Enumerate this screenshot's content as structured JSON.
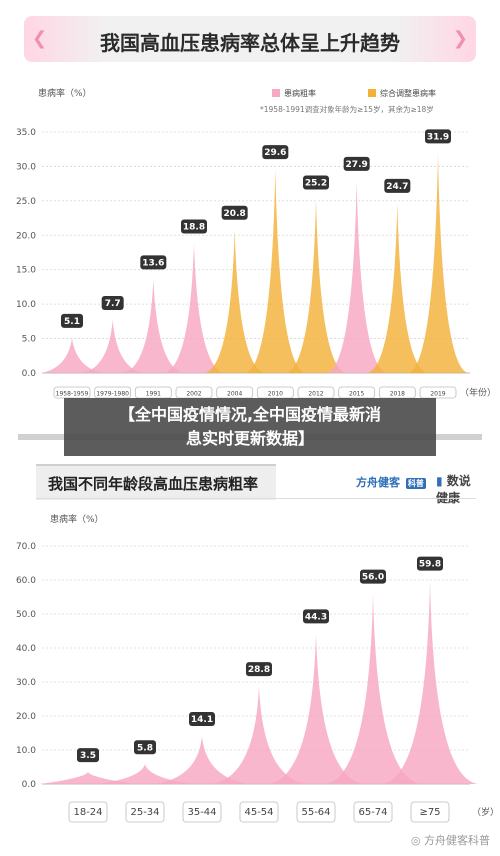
{
  "header": {
    "title": "我国高血压患病率总体呈上升趋势"
  },
  "banner": {
    "line1": "【全中国疫情情况,全中国疫情最新消",
    "line2": "息实时更新数据】"
  },
  "section2": {
    "title": "我国不同年龄段高血压患病粗率"
  },
  "brand": {
    "left": "方舟健客",
    "badge": "科普",
    "right": "数说健康"
  },
  "watermark": "方舟健客科普",
  "colors": {
    "pink": "#f7a7c1",
    "orange": "#f3b13a",
    "label_bg": "#333333",
    "axis_text": "#555555"
  },
  "chart_data": [
    {
      "type": "area",
      "title": "我国高血压患病率总体呈上升趋势",
      "ylabel": "患病率（%）",
      "xlabel": "（年份）",
      "ylim": [
        0,
        35
      ],
      "yticks": [
        "0.0",
        "5.0",
        "10.0",
        "15.0",
        "20.0",
        "25.0",
        "30.0",
        "35.0"
      ],
      "note": "*1958-1991调查对象年龄为≥15岁，其余为≥18岁",
      "legend": [
        "患病粗率",
        "综合调整患病率"
      ],
      "legend_position": "top-right",
      "categories": [
        "1958-1959",
        "1979-1980",
        "1991",
        "2002",
        "2004",
        "2010",
        "2012",
        "2015",
        "2018",
        "2019"
      ],
      "points": [
        {
          "x": "1958-1959",
          "value": 5.1,
          "label": "5.1",
          "series": "患病粗率"
        },
        {
          "x": "1979-1980",
          "value": 7.7,
          "label": "7.7",
          "series": "患病粗率"
        },
        {
          "x": "1991",
          "value": 13.6,
          "label": "13.6",
          "series": "患病粗率"
        },
        {
          "x": "2002",
          "value": 18.8,
          "label": "18.8",
          "series": "患病粗率"
        },
        {
          "x": "2004",
          "value": 20.8,
          "label": "20.8",
          "series": "综合调整患病率"
        },
        {
          "x": "2010",
          "value": 29.6,
          "label": "29.6",
          "series": "综合调整患病率"
        },
        {
          "x": "2012",
          "value": 25.2,
          "label": "25.2",
          "series": "综合调整患病率"
        },
        {
          "x": "2015",
          "value": 27.9,
          "label": "27.9",
          "series": "患病粗率"
        },
        {
          "x": "2018",
          "value": 24.7,
          "label": "24.7",
          "series": "综合调整患病率"
        },
        {
          "x": "2019",
          "value": 31.9,
          "label": "31.9",
          "series": "综合调整患病率"
        }
      ]
    },
    {
      "type": "area",
      "title": "我国不同年龄段高血压患病粗率",
      "ylabel": "患病率（%）",
      "xlabel": "（岁）",
      "ylim": [
        0,
        70
      ],
      "yticks": [
        "0.0",
        "10.0",
        "20.0",
        "30.0",
        "40.0",
        "50.0",
        "60.0",
        "70.0"
      ],
      "categories": [
        "18-24",
        "25-34",
        "35-44",
        "45-54",
        "55-64",
        "65-74",
        "≥75"
      ],
      "points": [
        {
          "x": "18-24",
          "value": 3.5,
          "label": "3.5"
        },
        {
          "x": "25-34",
          "value": 5.8,
          "label": "5.8"
        },
        {
          "x": "35-44",
          "value": 14.1,
          "label": "14.1"
        },
        {
          "x": "45-54",
          "value": 28.8,
          "label": "28.8"
        },
        {
          "x": "55-64",
          "value": 44.3,
          "label": "44.3"
        },
        {
          "x": "65-74",
          "value": 56.0,
          "label": "56.0"
        },
        {
          "x": "≥75",
          "value": 59.8,
          "label": "59.8"
        }
      ]
    }
  ]
}
